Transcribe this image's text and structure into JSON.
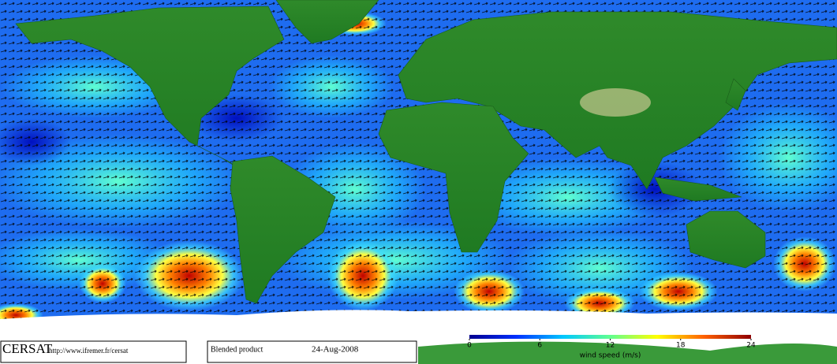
{
  "header": {
    "logo": "CERSAT",
    "url": "http://www.ifremer.fr/cersat",
    "product": "Blended product",
    "date": "24-Aug-2008"
  },
  "colorbar": {
    "label": "wind speed (m/s)",
    "lim": [
      0,
      24
    ],
    "ticks": [
      0,
      6,
      12,
      18,
      24
    ],
    "colors": [
      "#00008f",
      "#0030ff",
      "#00c8ff",
      "#60ff90",
      "#ffff00",
      "#ff6000",
      "#8f0000"
    ]
  }
}
